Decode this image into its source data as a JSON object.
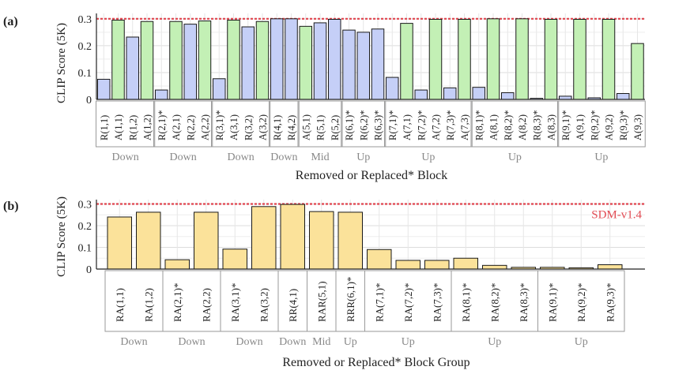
{
  "chart_data": [
    {
      "panel_label": "(a)",
      "type": "bar",
      "ylabel": "CLIP Score (5K)",
      "xlabel": "Removed or Replaced* Block",
      "ylim": [
        0,
        0.32
      ],
      "yticks": [
        "0",
        "0.1",
        "0.2",
        "0.3"
      ],
      "reference_line": {
        "value": 0.3,
        "label": ""
      },
      "categories": [
        "R(1,1)",
        "A(1,1)",
        "R(1,2)",
        "A(1,2)",
        "R(2,1)*",
        "A(2,1)",
        "R(2,2)",
        "A(2,2)",
        "R(3,1)*",
        "A(3,1)",
        "R(3,2)",
        "A(3,2)",
        "R(4,1)",
        "R(4,2)",
        "A(5,1)",
        "R(5,1)",
        "R(5,2)",
        "R(6,1)*",
        "R(6,2)*",
        "R(6,3)*",
        "R(7,1)*",
        "A(7,1)",
        "R(7,2)*",
        "A(7,2)",
        "R(7,3)*",
        "A(7,3)",
        "R(8,1)*",
        "A(8,1)",
        "R(8,2)*",
        "A(8,2)",
        "R(8,3)*",
        "A(8,3)",
        "R(9,1)*",
        "A(9,1)",
        "R(9,2)*",
        "A(9,2)",
        "R(9,3)*",
        "A(9,3)"
      ],
      "values": [
        0.075,
        0.295,
        0.232,
        0.29,
        0.035,
        0.29,
        0.28,
        0.292,
        0.077,
        0.295,
        0.27,
        0.29,
        0.3,
        0.3,
        0.272,
        0.285,
        0.298,
        0.258,
        0.25,
        0.262,
        0.082,
        0.283,
        0.035,
        0.298,
        0.043,
        0.298,
        0.045,
        0.3,
        0.025,
        0.3,
        0.004,
        0.298,
        0.012,
        0.298,
        0.006,
        0.298,
        0.022,
        0.208
      ],
      "bar_types": [
        "R",
        "A",
        "R",
        "A",
        "R",
        "A",
        "R",
        "A",
        "R",
        "A",
        "R",
        "A",
        "R",
        "R",
        "A",
        "R",
        "R",
        "R",
        "R",
        "R",
        "R",
        "A",
        "R",
        "A",
        "R",
        "A",
        "R",
        "A",
        "R",
        "A",
        "R",
        "A",
        "R",
        "A",
        "R",
        "A",
        "R",
        "A"
      ],
      "groups": [
        {
          "label": "Down",
          "start": 0,
          "end": 3
        },
        {
          "label": "Down",
          "start": 4,
          "end": 7
        },
        {
          "label": "Down",
          "start": 8,
          "end": 11
        },
        {
          "label": "Down",
          "start": 12,
          "end": 13
        },
        {
          "label": "Mid",
          "start": 14,
          "end": 16
        },
        {
          "label": "Up",
          "start": 17,
          "end": 19
        },
        {
          "label": "Up",
          "start": 20,
          "end": 25
        },
        {
          "label": "Up",
          "start": 26,
          "end": 31
        },
        {
          "label": "Up",
          "start": 32,
          "end": 37
        }
      ],
      "colors": {
        "R": "#c5cff7",
        "A": "#c3f0b5",
        "edge": "#1a1a1a"
      }
    },
    {
      "panel_label": "(b)",
      "type": "bar",
      "ylabel": "CLIP Score (5K)",
      "xlabel": "Removed or Replaced* Block Group",
      "ylim": [
        0,
        0.32
      ],
      "yticks": [
        "0",
        "0.1",
        "0.2",
        "0.3"
      ],
      "reference_line": {
        "value": 0.3,
        "label": "SDM-v1.4"
      },
      "categories": [
        "RA(1,1)",
        "RA(1,2)",
        "RA(2,1)*",
        "RA(2,2)",
        "RA(3,1)*",
        "RA(3,2)",
        "RR(4,1)",
        "RAR(5,1)",
        "RRR(6,1)*",
        "RA(7,1)*",
        "RA(7,2)*",
        "RA(7,3)*",
        "RA(8,1)*",
        "RA(8,2)*",
        "RA(8,3)*",
        "RA(9,1)*",
        "RA(9,2)*",
        "RA(9,3)*"
      ],
      "values": [
        0.24,
        0.262,
        0.043,
        0.262,
        0.092,
        0.288,
        0.298,
        0.265,
        0.262,
        0.09,
        0.04,
        0.04,
        0.05,
        0.017,
        0.008,
        0.008,
        0.006,
        0.02
      ],
      "groups": [
        {
          "label": "Down",
          "start": 0,
          "end": 1
        },
        {
          "label": "Down",
          "start": 2,
          "end": 3
        },
        {
          "label": "Down",
          "start": 4,
          "end": 5
        },
        {
          "label": "Down",
          "start": 6,
          "end": 6
        },
        {
          "label": "Mid",
          "start": 7,
          "end": 7
        },
        {
          "label": "Up",
          "start": 8,
          "end": 8
        },
        {
          "label": "Up",
          "start": 9,
          "end": 11
        },
        {
          "label": "Up",
          "start": 12,
          "end": 14
        },
        {
          "label": "Up",
          "start": 15,
          "end": 17
        }
      ],
      "colors": {
        "bar": "#fbe29a",
        "edge": "#1a1a1a"
      }
    }
  ],
  "colors": {
    "reference_line": "#e0454f",
    "reference_label": "#e24a52",
    "grid": "#dddddd",
    "group_label": "#888888"
  }
}
